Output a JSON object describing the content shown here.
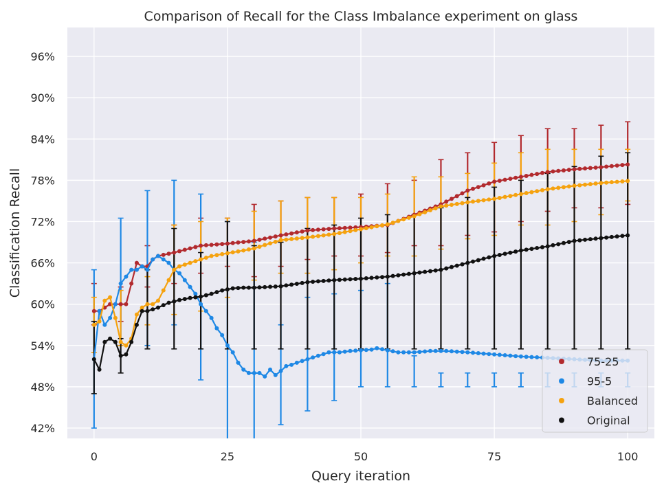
{
  "chart_data": {
    "type": "line",
    "title": "Comparison of Recall for the Class Imbalance experiment on glass",
    "xlabel": "Query iteration",
    "ylabel": "Classification Recall",
    "xlim": [
      -5,
      105
    ],
    "ylim": [
      40.5,
      100.2
    ],
    "xticks": [
      0,
      25,
      50,
      75,
      100
    ],
    "yticks": [
      42,
      48,
      54,
      60,
      66,
      72,
      78,
      84,
      90,
      96
    ],
    "ytick_labels": [
      "42%",
      "48%",
      "54%",
      "60%",
      "66%",
      "72%",
      "78%",
      "84%",
      "90%",
      "96%"
    ],
    "grid": true,
    "legend_position": "bottom-right",
    "series": [
      {
        "name": "75-25",
        "color": "#b22a2e",
        "knots": [
          [
            0,
            59
          ],
          [
            1,
            59
          ],
          [
            2,
            59.5
          ],
          [
            3,
            60
          ],
          [
            4,
            60
          ],
          [
            5,
            60
          ],
          [
            6,
            60
          ],
          [
            7,
            63
          ],
          [
            8,
            66
          ],
          [
            9,
            65.5
          ],
          [
            10,
            65.5
          ],
          [
            11,
            66.5
          ],
          [
            12,
            67
          ],
          [
            15,
            67.5
          ],
          [
            20,
            68.5
          ],
          [
            25,
            68.8
          ],
          [
            30,
            69.2
          ],
          [
            35,
            70
          ],
          [
            40,
            70.7
          ],
          [
            45,
            71
          ],
          [
            50,
            71.2
          ],
          [
            55,
            71.5
          ],
          [
            60,
            73
          ],
          [
            65,
            74.5
          ],
          [
            70,
            76.5
          ],
          [
            75,
            77.8
          ],
          [
            80,
            78.5
          ],
          [
            85,
            79.2
          ],
          [
            90,
            79.6
          ],
          [
            95,
            79.9
          ],
          [
            100,
            80.3
          ]
        ],
        "error_bars": [
          [
            0,
            57,
            63
          ],
          [
            5,
            57.5,
            62.5
          ],
          [
            10,
            62.5,
            68.5
          ],
          [
            15,
            63,
            71.5
          ],
          [
            20,
            64.5,
            72.5
          ],
          [
            25,
            65.5,
            72.5
          ],
          [
            30,
            64,
            74.5
          ],
          [
            35,
            65.5,
            75
          ],
          [
            40,
            66.5,
            75.5
          ],
          [
            45,
            67,
            75.5
          ],
          [
            50,
            67,
            76
          ],
          [
            55,
            67.5,
            77.5
          ],
          [
            60,
            68.5,
            78
          ],
          [
            65,
            68.5,
            81
          ],
          [
            70,
            70,
            82
          ],
          [
            75,
            70.5,
            83.5
          ],
          [
            80,
            72,
            84.5
          ],
          [
            85,
            73.5,
            85.5
          ],
          [
            90,
            74,
            85.5
          ],
          [
            95,
            74,
            86
          ],
          [
            100,
            74.5,
            86.5
          ]
        ]
      },
      {
        "name": "95-5",
        "color": "#1e88e5",
        "knots": [
          [
            0,
            52
          ],
          [
            1,
            59
          ],
          [
            2,
            57
          ],
          [
            3,
            58
          ],
          [
            4,
            60
          ],
          [
            5,
            63
          ],
          [
            6,
            64
          ],
          [
            7,
            65
          ],
          [
            8,
            65
          ],
          [
            9,
            65.5
          ],
          [
            10,
            65
          ],
          [
            11,
            66.5
          ],
          [
            12,
            67
          ],
          [
            13,
            66.5
          ],
          [
            14,
            66
          ],
          [
            15,
            65
          ],
          [
            16,
            64.5
          ],
          [
            17,
            63.5
          ],
          [
            18,
            62.5
          ],
          [
            19,
            61.5
          ],
          [
            20,
            60
          ],
          [
            21,
            59
          ],
          [
            22,
            58
          ],
          [
            23,
            56.5
          ],
          [
            24,
            55.5
          ],
          [
            25,
            54
          ],
          [
            26,
            53
          ],
          [
            27,
            51.5
          ],
          [
            28,
            50.5
          ],
          [
            29,
            50
          ],
          [
            30,
            50
          ],
          [
            31,
            50
          ],
          [
            32,
            49.5
          ],
          [
            33,
            50.5
          ],
          [
            34,
            49.7
          ],
          [
            35,
            50.3
          ],
          [
            36,
            51
          ],
          [
            37,
            51.2
          ],
          [
            38,
            51.5
          ],
          [
            40,
            52
          ],
          [
            42,
            52.5
          ],
          [
            44,
            53
          ],
          [
            46,
            53
          ],
          [
            48,
            53.2
          ],
          [
            50,
            53.3
          ],
          [
            52,
            53.4
          ],
          [
            53,
            53.6
          ],
          [
            55,
            53.3
          ],
          [
            57,
            53
          ],
          [
            60,
            53
          ],
          [
            63,
            53.2
          ],
          [
            66,
            53.2
          ],
          [
            70,
            53
          ],
          [
            75,
            52.7
          ],
          [
            80,
            52.4
          ],
          [
            85,
            52.2
          ],
          [
            90,
            52
          ],
          [
            95,
            51.8
          ],
          [
            100,
            51.8
          ]
        ],
        "error_bars": [
          [
            0,
            42,
            65
          ],
          [
            5,
            54,
            72.5
          ],
          [
            10,
            54,
            76.5
          ],
          [
            15,
            57,
            78
          ],
          [
            20,
            49,
            76
          ],
          [
            25,
            35,
            72
          ],
          [
            30,
            35,
            69
          ],
          [
            35,
            42.5,
            57
          ],
          [
            40,
            44.5,
            61
          ],
          [
            45,
            46,
            61.5
          ],
          [
            50,
            48,
            62
          ],
          [
            55,
            48,
            63
          ],
          [
            60,
            48,
            52.5
          ],
          [
            65,
            48,
            50
          ],
          [
            70,
            48,
            50
          ],
          [
            75,
            48,
            50
          ],
          [
            80,
            48,
            50
          ],
          [
            85,
            48,
            50
          ],
          [
            90,
            48,
            50
          ],
          [
            95,
            48,
            50
          ],
          [
            100,
            48,
            50
          ]
        ]
      },
      {
        "name": "Balanced",
        "color": "#f5a20f",
        "knots": [
          [
            0,
            57
          ],
          [
            1,
            57.5
          ],
          [
            2,
            60.5
          ],
          [
            3,
            61
          ],
          [
            4,
            58
          ],
          [
            5,
            54.5
          ],
          [
            6,
            54
          ],
          [
            7,
            55
          ],
          [
            8,
            58.5
          ],
          [
            9,
            59.5
          ],
          [
            10,
            60
          ],
          [
            11,
            60
          ],
          [
            12,
            60.5
          ],
          [
            13,
            62
          ],
          [
            14,
            63.5
          ],
          [
            15,
            65
          ],
          [
            16,
            65.5
          ],
          [
            18,
            66
          ],
          [
            20,
            66.5
          ],
          [
            22,
            67
          ],
          [
            25,
            67.4
          ],
          [
            28,
            67.8
          ],
          [
            30,
            68.1
          ],
          [
            32,
            68.6
          ],
          [
            35,
            69.3
          ],
          [
            40,
            69.7
          ],
          [
            45,
            70.2
          ],
          [
            50,
            70.9
          ],
          [
            55,
            71.6
          ],
          [
            60,
            72.8
          ],
          [
            65,
            74.2
          ],
          [
            70,
            74.8
          ],
          [
            75,
            75.3
          ],
          [
            80,
            76
          ],
          [
            85,
            76.7
          ],
          [
            90,
            77.2
          ],
          [
            95,
            77.6
          ],
          [
            100,
            77.9
          ]
        ],
        "error_bars": [
          [
            0,
            53,
            61
          ],
          [
            5,
            54,
            62
          ],
          [
            10,
            57,
            64
          ],
          [
            15,
            58.5,
            71.5
          ],
          [
            20,
            59,
            72
          ],
          [
            25,
            61,
            72.5
          ],
          [
            30,
            63.5,
            73.5
          ],
          [
            35,
            64.5,
            75
          ],
          [
            40,
            64.5,
            75.5
          ],
          [
            45,
            65,
            75.5
          ],
          [
            50,
            66,
            75.5
          ],
          [
            55,
            67,
            76
          ],
          [
            60,
            67,
            78.5
          ],
          [
            65,
            68,
            78.5
          ],
          [
            70,
            69.5,
            79
          ],
          [
            75,
            70,
            80.5
          ],
          [
            80,
            71.5,
            82
          ],
          [
            85,
            71.5,
            82.5
          ],
          [
            90,
            72,
            82.5
          ],
          [
            95,
            73,
            82.5
          ],
          [
            100,
            75,
            82.5
          ]
        ]
      },
      {
        "name": "Original",
        "color": "#111111",
        "knots": [
          [
            0,
            52
          ],
          [
            1,
            50.5
          ],
          [
            2,
            54.5
          ],
          [
            3,
            55
          ],
          [
            4,
            54.5
          ],
          [
            5,
            52.5
          ],
          [
            6,
            52.7
          ],
          [
            7,
            54.5
          ],
          [
            8,
            57
          ],
          [
            9,
            59
          ],
          [
            10,
            59
          ],
          [
            12,
            59.5
          ],
          [
            14,
            60.2
          ],
          [
            16,
            60.6
          ],
          [
            18,
            60.9
          ],
          [
            20,
            61.1
          ],
          [
            22,
            61.5
          ],
          [
            24,
            62
          ],
          [
            26,
            62.3
          ],
          [
            28,
            62.4
          ],
          [
            30,
            62.4
          ],
          [
            35,
            62.6
          ],
          [
            40,
            63.2
          ],
          [
            45,
            63.5
          ],
          [
            50,
            63.7
          ],
          [
            55,
            64
          ],
          [
            60,
            64.5
          ],
          [
            65,
            65
          ],
          [
            70,
            66
          ],
          [
            75,
            67
          ],
          [
            80,
            67.8
          ],
          [
            85,
            68.4
          ],
          [
            90,
            69.2
          ],
          [
            95,
            69.6
          ],
          [
            100,
            70
          ]
        ],
        "error_bars": [
          [
            0,
            47,
            57.5
          ],
          [
            5,
            50,
            55
          ],
          [
            10,
            53.5,
            65
          ],
          [
            15,
            53.5,
            71
          ],
          [
            20,
            53.5,
            67.5
          ],
          [
            25,
            53.5,
            72
          ],
          [
            30,
            53.5,
            68.5
          ],
          [
            35,
            53.5,
            69
          ],
          [
            40,
            53.5,
            71
          ],
          [
            45,
            53.5,
            71.5
          ],
          [
            50,
            53.5,
            72.5
          ],
          [
            55,
            53.5,
            73
          ],
          [
            60,
            53.5,
            73
          ],
          [
            65,
            53.5,
            74
          ],
          [
            70,
            53.5,
            75.5
          ],
          [
            75,
            53.5,
            77
          ],
          [
            80,
            53.5,
            78
          ],
          [
            85,
            53.5,
            79
          ],
          [
            90,
            53.5,
            80
          ],
          [
            95,
            53.5,
            81.5
          ],
          [
            100,
            53.5,
            82
          ]
        ]
      }
    ]
  }
}
